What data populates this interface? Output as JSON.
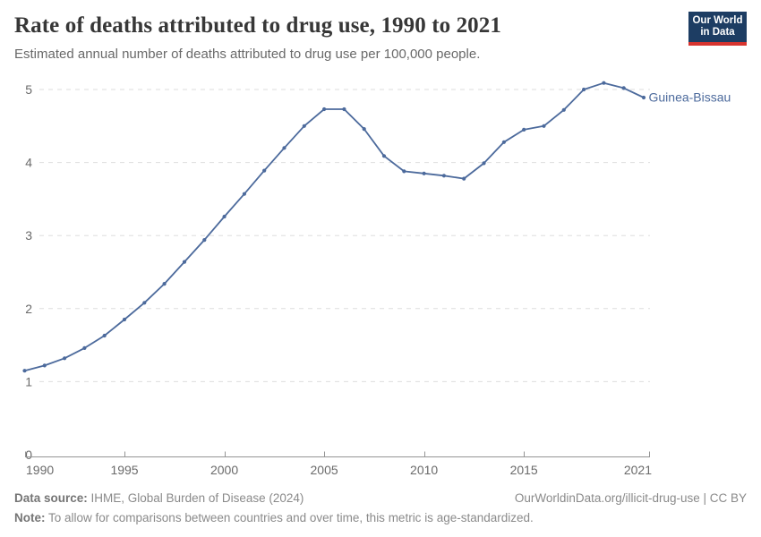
{
  "header": {
    "title": "Rate of deaths attributed to drug use, 1990 to 2021",
    "subtitle": "Estimated annual number of deaths attributed to drug use per 100,000 people.",
    "logo": {
      "line1": "Our World",
      "line2": "in Data"
    }
  },
  "chart_data": {
    "type": "line",
    "title": "Rate of deaths attributed to drug use, 1990 to 2021",
    "subtitle": "Estimated annual number of deaths attributed to drug use per 100,000 people.",
    "xlabel": "",
    "ylabel": "",
    "xlim": [
      1990,
      2021
    ],
    "ylim": [
      0,
      5
    ],
    "xticks": [
      1990,
      1995,
      2000,
      2005,
      2010,
      2015,
      2021
    ],
    "yticks": [
      0,
      1,
      2,
      3,
      4,
      5
    ],
    "grid": "horizontal-dashed",
    "legend_position": "end-of-line",
    "series": [
      {
        "name": "Guinea-Bissau",
        "color": "#4c6a9c",
        "x": [
          1990,
          1991,
          1992,
          1993,
          1994,
          1995,
          1996,
          1997,
          1998,
          1999,
          2000,
          2001,
          2002,
          2003,
          2004,
          2005,
          2006,
          2007,
          2008,
          2009,
          2010,
          2011,
          2012,
          2013,
          2014,
          2015,
          2016,
          2017,
          2018,
          2019,
          2020,
          2021
        ],
        "values": [
          1.15,
          1.22,
          1.32,
          1.46,
          1.63,
          1.85,
          2.08,
          2.34,
          2.64,
          2.94,
          3.26,
          3.57,
          3.89,
          4.2,
          4.5,
          4.73,
          4.73,
          4.46,
          4.09,
          3.88,
          3.85,
          3.82,
          3.78,
          3.99,
          4.28,
          4.45,
          4.5,
          4.72,
          5.0,
          5.09,
          5.02,
          4.89
        ]
      }
    ]
  },
  "footer": {
    "source_label": "Data source:",
    "source_text": " IHME, Global Burden of Disease (2024)",
    "rights": "OurWorldinData.org/illicit-drug-use | CC BY",
    "note_label": "Note:",
    "note_text": " To allow for comparisons between countries and over time, this metric is age-standardized."
  },
  "colors": {
    "line": "#4c6a9c",
    "grid": "#dedede",
    "axis": "#949494",
    "tick_label": "#6a6a6a",
    "logo_bg": "#1d3d63",
    "logo_bar": "#d7342f"
  }
}
